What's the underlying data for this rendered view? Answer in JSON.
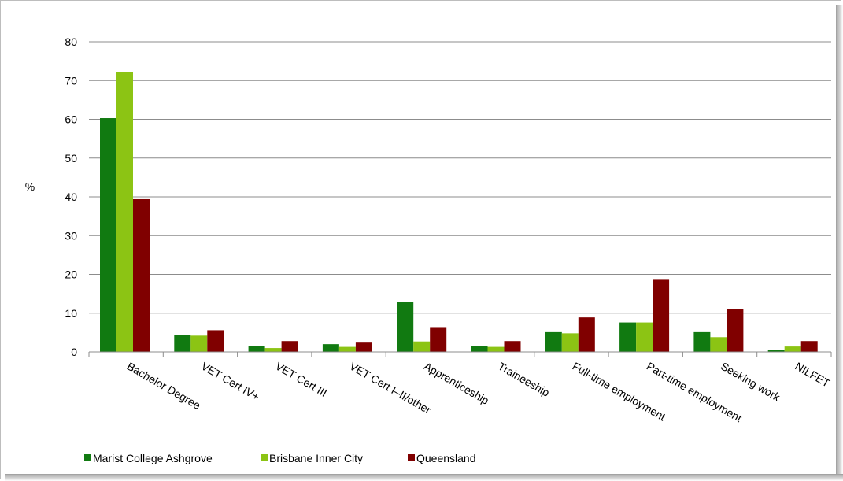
{
  "chart_data": {
    "type": "bar",
    "ylabel": "%",
    "ylim": [
      0,
      80
    ],
    "yticks": [
      0,
      10,
      20,
      30,
      40,
      50,
      60,
      70,
      80
    ],
    "grid": true,
    "legend_position": "bottom-left",
    "categories": [
      "Bachelor Degree",
      "VET Cert IV+",
      "VET Cert III",
      "VET Cert I–II/other",
      "Apprenticeship",
      "Traineeship",
      "Full-time employment",
      "Part-time employment",
      "Seeking work",
      "NILFET"
    ],
    "series": [
      {
        "name": "Marist College Ashgrove",
        "color": "#117a11",
        "values": [
          60.3,
          4.4,
          1.6,
          2.0,
          12.8,
          1.6,
          5.1,
          7.6,
          5.1,
          0.6
        ]
      },
      {
        "name": "Brisbane Inner City",
        "color": "#8cc414",
        "values": [
          72.1,
          4.2,
          1.0,
          1.3,
          2.7,
          1.3,
          4.8,
          7.6,
          3.8,
          1.4
        ]
      },
      {
        "name": "Queensland",
        "color": "#800000",
        "values": [
          39.4,
          5.6,
          2.8,
          2.4,
          6.2,
          2.8,
          8.9,
          18.6,
          11.1,
          2.8
        ]
      }
    ]
  }
}
